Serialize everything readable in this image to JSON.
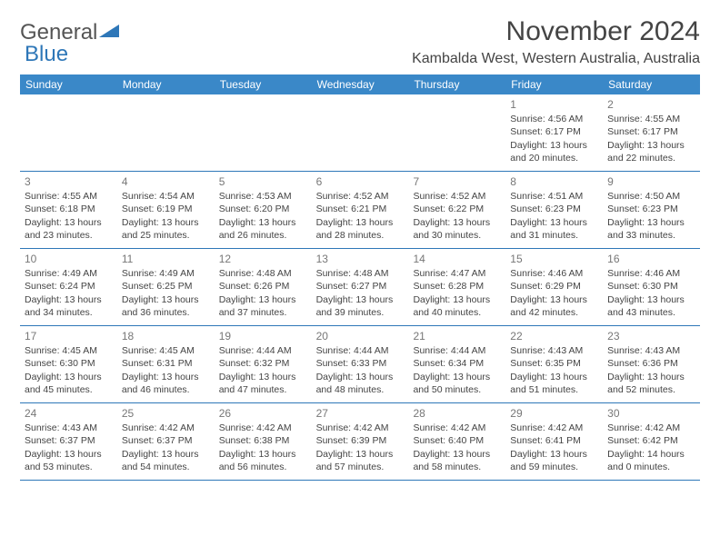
{
  "logo": {
    "text1": "General",
    "text2": "Blue"
  },
  "title": "November 2024",
  "location": "Kambalda West, Western Australia, Australia",
  "colors": {
    "header_bg": "#3a88c8",
    "header_text": "#ffffff",
    "border": "#2e77b8",
    "text": "#444444",
    "daynum": "#777777"
  },
  "day_headers": [
    "Sunday",
    "Monday",
    "Tuesday",
    "Wednesday",
    "Thursday",
    "Friday",
    "Saturday"
  ],
  "weeks": [
    [
      {
        "n": "",
        "sr": "",
        "ss": "",
        "dl": ""
      },
      {
        "n": "",
        "sr": "",
        "ss": "",
        "dl": ""
      },
      {
        "n": "",
        "sr": "",
        "ss": "",
        "dl": ""
      },
      {
        "n": "",
        "sr": "",
        "ss": "",
        "dl": ""
      },
      {
        "n": "",
        "sr": "",
        "ss": "",
        "dl": ""
      },
      {
        "n": "1",
        "sr": "Sunrise: 4:56 AM",
        "ss": "Sunset: 6:17 PM",
        "dl": "Daylight: 13 hours and 20 minutes."
      },
      {
        "n": "2",
        "sr": "Sunrise: 4:55 AM",
        "ss": "Sunset: 6:17 PM",
        "dl": "Daylight: 13 hours and 22 minutes."
      }
    ],
    [
      {
        "n": "3",
        "sr": "Sunrise: 4:55 AM",
        "ss": "Sunset: 6:18 PM",
        "dl": "Daylight: 13 hours and 23 minutes."
      },
      {
        "n": "4",
        "sr": "Sunrise: 4:54 AM",
        "ss": "Sunset: 6:19 PM",
        "dl": "Daylight: 13 hours and 25 minutes."
      },
      {
        "n": "5",
        "sr": "Sunrise: 4:53 AM",
        "ss": "Sunset: 6:20 PM",
        "dl": "Daylight: 13 hours and 26 minutes."
      },
      {
        "n": "6",
        "sr": "Sunrise: 4:52 AM",
        "ss": "Sunset: 6:21 PM",
        "dl": "Daylight: 13 hours and 28 minutes."
      },
      {
        "n": "7",
        "sr": "Sunrise: 4:52 AM",
        "ss": "Sunset: 6:22 PM",
        "dl": "Daylight: 13 hours and 30 minutes."
      },
      {
        "n": "8",
        "sr": "Sunrise: 4:51 AM",
        "ss": "Sunset: 6:23 PM",
        "dl": "Daylight: 13 hours and 31 minutes."
      },
      {
        "n": "9",
        "sr": "Sunrise: 4:50 AM",
        "ss": "Sunset: 6:23 PM",
        "dl": "Daylight: 13 hours and 33 minutes."
      }
    ],
    [
      {
        "n": "10",
        "sr": "Sunrise: 4:49 AM",
        "ss": "Sunset: 6:24 PM",
        "dl": "Daylight: 13 hours and 34 minutes."
      },
      {
        "n": "11",
        "sr": "Sunrise: 4:49 AM",
        "ss": "Sunset: 6:25 PM",
        "dl": "Daylight: 13 hours and 36 minutes."
      },
      {
        "n": "12",
        "sr": "Sunrise: 4:48 AM",
        "ss": "Sunset: 6:26 PM",
        "dl": "Daylight: 13 hours and 37 minutes."
      },
      {
        "n": "13",
        "sr": "Sunrise: 4:48 AM",
        "ss": "Sunset: 6:27 PM",
        "dl": "Daylight: 13 hours and 39 minutes."
      },
      {
        "n": "14",
        "sr": "Sunrise: 4:47 AM",
        "ss": "Sunset: 6:28 PM",
        "dl": "Daylight: 13 hours and 40 minutes."
      },
      {
        "n": "15",
        "sr": "Sunrise: 4:46 AM",
        "ss": "Sunset: 6:29 PM",
        "dl": "Daylight: 13 hours and 42 minutes."
      },
      {
        "n": "16",
        "sr": "Sunrise: 4:46 AM",
        "ss": "Sunset: 6:30 PM",
        "dl": "Daylight: 13 hours and 43 minutes."
      }
    ],
    [
      {
        "n": "17",
        "sr": "Sunrise: 4:45 AM",
        "ss": "Sunset: 6:30 PM",
        "dl": "Daylight: 13 hours and 45 minutes."
      },
      {
        "n": "18",
        "sr": "Sunrise: 4:45 AM",
        "ss": "Sunset: 6:31 PM",
        "dl": "Daylight: 13 hours and 46 minutes."
      },
      {
        "n": "19",
        "sr": "Sunrise: 4:44 AM",
        "ss": "Sunset: 6:32 PM",
        "dl": "Daylight: 13 hours and 47 minutes."
      },
      {
        "n": "20",
        "sr": "Sunrise: 4:44 AM",
        "ss": "Sunset: 6:33 PM",
        "dl": "Daylight: 13 hours and 48 minutes."
      },
      {
        "n": "21",
        "sr": "Sunrise: 4:44 AM",
        "ss": "Sunset: 6:34 PM",
        "dl": "Daylight: 13 hours and 50 minutes."
      },
      {
        "n": "22",
        "sr": "Sunrise: 4:43 AM",
        "ss": "Sunset: 6:35 PM",
        "dl": "Daylight: 13 hours and 51 minutes."
      },
      {
        "n": "23",
        "sr": "Sunrise: 4:43 AM",
        "ss": "Sunset: 6:36 PM",
        "dl": "Daylight: 13 hours and 52 minutes."
      }
    ],
    [
      {
        "n": "24",
        "sr": "Sunrise: 4:43 AM",
        "ss": "Sunset: 6:37 PM",
        "dl": "Daylight: 13 hours and 53 minutes."
      },
      {
        "n": "25",
        "sr": "Sunrise: 4:42 AM",
        "ss": "Sunset: 6:37 PM",
        "dl": "Daylight: 13 hours and 54 minutes."
      },
      {
        "n": "26",
        "sr": "Sunrise: 4:42 AM",
        "ss": "Sunset: 6:38 PM",
        "dl": "Daylight: 13 hours and 56 minutes."
      },
      {
        "n": "27",
        "sr": "Sunrise: 4:42 AM",
        "ss": "Sunset: 6:39 PM",
        "dl": "Daylight: 13 hours and 57 minutes."
      },
      {
        "n": "28",
        "sr": "Sunrise: 4:42 AM",
        "ss": "Sunset: 6:40 PM",
        "dl": "Daylight: 13 hours and 58 minutes."
      },
      {
        "n": "29",
        "sr": "Sunrise: 4:42 AM",
        "ss": "Sunset: 6:41 PM",
        "dl": "Daylight: 13 hours and 59 minutes."
      },
      {
        "n": "30",
        "sr": "Sunrise: 4:42 AM",
        "ss": "Sunset: 6:42 PM",
        "dl": "Daylight: 14 hours and 0 minutes."
      }
    ]
  ]
}
